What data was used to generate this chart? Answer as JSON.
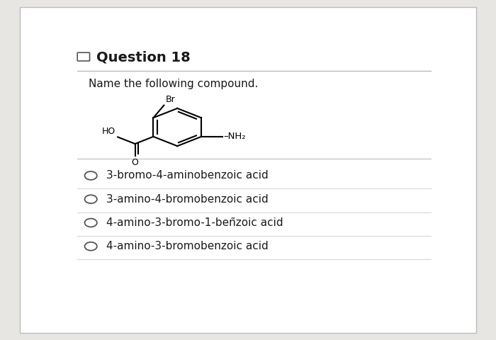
{
  "title": "Question 18",
  "question_text": "Name the following compound.",
  "options": [
    "3-bromo-4-aminobenzoic acid",
    "3-amino-4-bromobenzoic acid",
    "4-amino-3-bromo-1-beñzoic acid",
    "4-amino-3-bromobenzoic acid"
  ],
  "bg_color": "#e8e6e3",
  "card_color": "#ffffff",
  "text_color": "#1a1a1a",
  "option_font_size": 11,
  "title_font_size": 14
}
